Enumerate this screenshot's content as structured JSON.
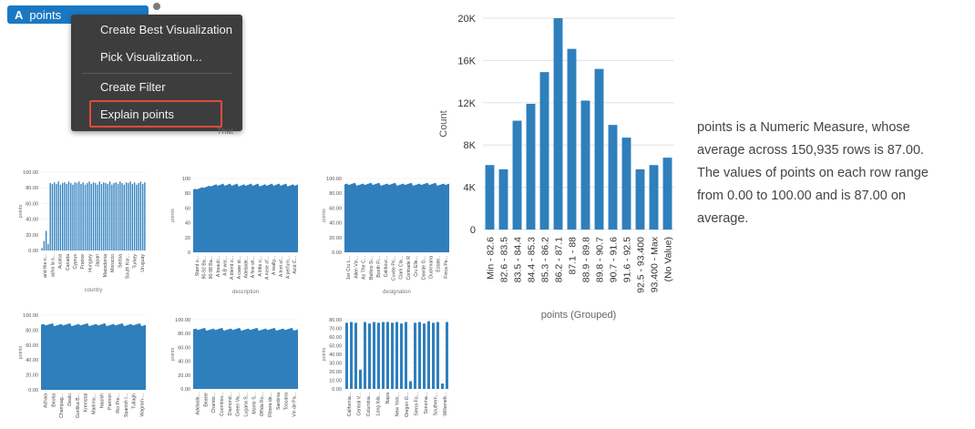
{
  "field_pill": {
    "glyph": "A",
    "label": "points",
    "color": "#1a78c2"
  },
  "context_menu": {
    "items": [
      {
        "label": "Create Best Visualization"
      },
      {
        "label": "Pick Visualization..."
      },
      {
        "label": "Create Filter"
      },
      {
        "label": "Explain points",
        "highlighted": true
      }
    ]
  },
  "menu_overflow_text": "That",
  "description": {
    "lines": [
      "points is a Numeric Measure, whose",
      "average across 150,935 rows is 87.00.",
      "The values of points on each row range",
      "from 0.00 to 100.00 and is 87.00 on",
      "average."
    ]
  },
  "accent_color": "#2f7fbd",
  "chart_data": [
    {
      "type": "bar",
      "categories": [
        "Min - 82.6",
        "82.6 - 83.5",
        "83.5 - 84.4",
        "84.4 - 85.3",
        "85.3 - 86.2",
        "86.2 - 87.1",
        "87.1 - 88",
        "88.9 - 89.8",
        "89.8 - 90.7",
        "90.7 - 91.6",
        "91.6 - 92.5",
        "92.5 - 93.400",
        "93.400 - Max",
        "(No Value)"
      ],
      "values": [
        6100,
        5700,
        10300,
        11900,
        14900,
        20000,
        17100,
        12200,
        15200,
        9900,
        8700,
        5700,
        6100,
        6800
      ],
      "xlabel": "points (Grouped)",
      "ylabel": "Count",
      "ylim": [
        0,
        20000
      ],
      "yticks": [
        "0",
        "4K",
        "8K",
        "12K",
        "16K",
        "20K"
      ],
      "grid": true
    },
    {
      "type": "bar",
      "xlabel": "country",
      "ylabel": "points",
      "ylim": [
        0,
        100
      ],
      "yticks": [
        "0.00",
        "20.00",
        "40.00",
        "60.00",
        "80.00",
        "100.00"
      ],
      "tick_labels": [
        "and the n...",
        "acha la s...",
        "Austria",
        "Canada",
        "Cyprus",
        "France",
        "Hungary",
        "Japan",
        "Macedonia",
        "Morocco",
        "Serbia",
        "South Kor...",
        "Turkey",
        "Uruguay"
      ],
      "values": [
        3,
        12,
        25,
        8,
        86,
        85,
        87,
        85,
        88,
        84,
        86,
        87,
        85,
        88,
        86,
        84,
        87,
        86,
        88,
        85,
        87,
        84,
        86,
        88,
        85,
        87,
        86,
        84,
        88,
        85,
        87,
        86,
        85,
        88,
        84,
        86,
        87,
        85,
        88,
        86,
        84,
        87,
        86,
        88,
        85,
        87,
        84,
        86,
        88,
        85,
        87
      ]
    },
    {
      "type": "area",
      "xlabel": "description",
      "ylabel": "points",
      "ylim": [
        0,
        100
      ],
      "yticks": [
        "0",
        "20",
        "40",
        "60",
        "80",
        "100"
      ],
      "tick_labels": [
        "Stand o...",
        "90-92 Ba...",
        "90-98 Ba...",
        "A beauti...",
        "A B wor...",
        "A blend o...",
        "A case st...",
        "Adelaide...",
        "A fine sh...",
        "A little ri...",
        "A nose of...",
        "A really...",
        "A hint of...",
        "A perfum...",
        "Acid C..."
      ],
      "values": [
        85,
        87,
        89,
        91,
        92,
        92,
        92,
        91,
        92,
        92,
        91,
        92,
        92,
        92,
        91,
        92
      ]
    },
    {
      "type": "area",
      "xlabel": "designation",
      "ylabel": "points",
      "ylim": [
        0,
        100
      ],
      "yticks": [
        "0.00",
        "20.00",
        "40.00",
        "60.00",
        "80.00",
        "100.00"
      ],
      "tick_labels": [
        "1er Cru L...",
        "Allen Vin...",
        "As The C...",
        "Bellino Si...",
        "Booth Fi...",
        "Calibour...",
        "Cuvée Pri...",
        "Clark Cla...",
        "Contrade R",
        "Cru Elle...",
        "Davide G...",
        "Duckmana",
        "Estate..",
        "Finca Pe..."
      ],
      "values": [
        92,
        93,
        92,
        93,
        93,
        92,
        93,
        92,
        93,
        92,
        93,
        93,
        92,
        93
      ]
    },
    {
      "type": "area",
      "xlabel": "",
      "ylabel": "points",
      "ylim": [
        0,
        100
      ],
      "yticks": [
        "0.00",
        "20.00",
        "40.00",
        "60.00",
        "80.00",
        "100.00"
      ],
      "tick_labels": [
        "Achaia",
        "Beotia",
        "Champag...",
        "Dealu",
        "Goriška B...",
        "Kremstal",
        "Marlimo...",
        "Naoikh",
        "Pannon",
        "Rio Pre...",
        "Spanish I...",
        "Tullagh",
        "Wagram-..."
      ],
      "values": [
        87,
        88,
        87,
        88,
        87,
        88,
        87,
        88,
        87,
        88,
        87,
        88,
        87
      ]
    },
    {
      "type": "area",
      "xlabel": "",
      "ylabel": "points",
      "ylim": [
        0,
        100
      ],
      "yticks": [
        "0.00",
        "20.00",
        "40.00",
        "60.00",
        "80.00",
        "100.00"
      ],
      "tick_labels": [
        "Adelaide...",
        "Bearer",
        "Chambr...",
        "Coombsv...",
        "Diamond...",
        "Green Va...",
        "Lugana S...",
        "Monte S...",
        "Offida Ro...",
        "Ribera de...",
        "Sardinia",
        "Toscana",
        "Vin de Pa..."
      ],
      "values": [
        86,
        87,
        86,
        87,
        86,
        87,
        86,
        87,
        86,
        87,
        86,
        87,
        86
      ]
    },
    {
      "type": "bar",
      "xlabel": "",
      "ylabel": "points",
      "ylim": [
        0,
        90
      ],
      "yticks": [
        "0.00",
        "10.00",
        "20.00",
        "30.00",
        "40.00",
        "50.00",
        "60.00",
        "70.00",
        "80.00"
      ],
      "tick_labels": [
        "California...",
        "Central V...",
        "Columbia...",
        "Long Isla...",
        "Napa",
        "New York...",
        "Oregon O...",
        "Sierra Fo...",
        "Sonoma...",
        "Southern...",
        "Willamett..."
      ],
      "values": [
        86,
        87,
        86,
        25,
        87,
        85,
        87,
        86,
        87,
        87,
        86,
        87,
        85,
        87,
        10,
        86,
        87,
        85,
        88,
        86,
        87,
        7,
        87
      ]
    }
  ]
}
